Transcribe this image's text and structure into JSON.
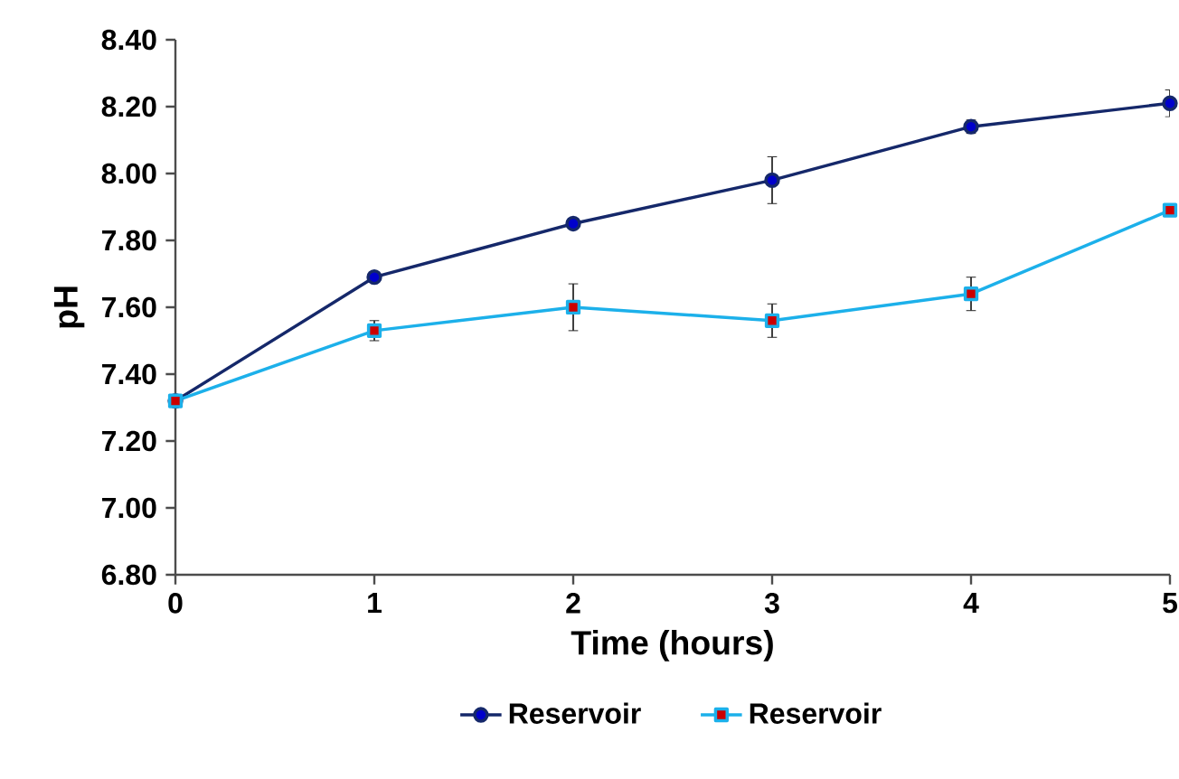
{
  "chart_data": {
    "type": "line",
    "xlabel": "Time (hours)",
    "ylabel": "pH",
    "x": [
      0,
      1,
      2,
      3,
      4,
      5
    ],
    "series": [
      {
        "name": "Reservoir",
        "color": "#15286a",
        "marker": "circle",
        "values": [
          7.32,
          7.69,
          7.85,
          7.98,
          8.14,
          8.21
        ],
        "errors": [
          null,
          0.01,
          null,
          0.07,
          0.02,
          0.04
        ]
      },
      {
        "name": "Reservoir",
        "color": "#1cb0ea",
        "marker": "square",
        "values": [
          7.32,
          7.53,
          7.6,
          7.56,
          7.64,
          7.89
        ],
        "errors": [
          null,
          0.03,
          0.07,
          0.05,
          0.05,
          null
        ]
      }
    ],
    "xlim": [
      0,
      5
    ],
    "ylim": [
      6.8,
      8.4
    ],
    "xticks": [
      0,
      1,
      2,
      3,
      4,
      5
    ],
    "yticks": [
      {
        "value": 6.8,
        "label": "6.80"
      },
      {
        "value": 7.0,
        "label": "7.00"
      },
      {
        "value": 7.2,
        "label": "7.20"
      },
      {
        "value": 7.4,
        "label": "7.40"
      },
      {
        "value": 7.6,
        "label": "7.60"
      },
      {
        "value": 7.8,
        "label": "7.80"
      },
      {
        "value": 8.0,
        "label": "8.00"
      },
      {
        "value": 8.2,
        "label": "8.20"
      },
      {
        "value": 8.4,
        "label": "8.40"
      }
    ],
    "grid": false,
    "legend": "bottom",
    "line_style": "solid"
  }
}
